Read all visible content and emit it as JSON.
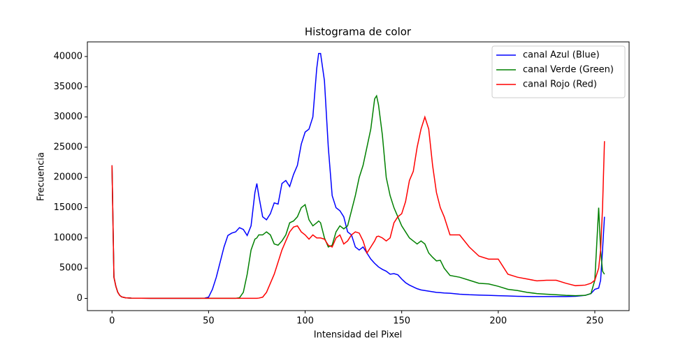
{
  "chart_data": {
    "type": "line",
    "title": "Histograma de color",
    "xlabel": "Intensidad del Pixel",
    "ylabel": "Frecuencia",
    "x": [
      0,
      1,
      2,
      3,
      4,
      5,
      7,
      10,
      15,
      20,
      30,
      40,
      45,
      48,
      50,
      52,
      54,
      56,
      58,
      60,
      62,
      64,
      66,
      68,
      70,
      72,
      74,
      75,
      76,
      78,
      80,
      82,
      84,
      86,
      88,
      90,
      92,
      94,
      96,
      98,
      100,
      102,
      104,
      106,
      107,
      108,
      110,
      112,
      114,
      116,
      118,
      120,
      122,
      124,
      126,
      128,
      130,
      132,
      134,
      136,
      137,
      138,
      140,
      142,
      144,
      146,
      148,
      150,
      152,
      154,
      156,
      158,
      160,
      162,
      164,
      166,
      168,
      170,
      172,
      175,
      180,
      185,
      190,
      195,
      200,
      205,
      210,
      215,
      220,
      225,
      230,
      235,
      240,
      245,
      248,
      250,
      252,
      253,
      254,
      255
    ],
    "series": [
      {
        "name": "canal Azul (Blue)",
        "color": "#0000ff",
        "values": [
          22000,
          3500,
          2000,
          1000,
          500,
          250,
          100,
          50,
          30,
          20,
          10,
          10,
          20,
          50,
          200,
          1500,
          3500,
          6000,
          8500,
          10400,
          10800,
          11000,
          11700,
          11400,
          10400,
          12000,
          17500,
          19000,
          17000,
          13500,
          13000,
          14000,
          15800,
          15600,
          19000,
          19500,
          18500,
          20500,
          22000,
          25500,
          27500,
          28000,
          30000,
          38000,
          40500,
          40500,
          36000,
          25000,
          17000,
          15000,
          14500,
          13500,
          11000,
          10500,
          8500,
          8000,
          8500,
          7500,
          6500,
          5800,
          5500,
          5200,
          4800,
          4500,
          4000,
          4100,
          3900,
          3200,
          2600,
          2200,
          1900,
          1600,
          1400,
          1300,
          1200,
          1100,
          1000,
          950,
          900,
          850,
          700,
          600,
          550,
          500,
          450,
          400,
          350,
          320,
          300,
          300,
          300,
          300,
          350,
          500,
          800,
          1500,
          1700,
          3000,
          8000,
          13500
        ]
      },
      {
        "name": "canal Verde (Green)",
        "color": "#008000",
        "values": [
          22000,
          3500,
          2000,
          1000,
          500,
          250,
          100,
          50,
          30,
          20,
          10,
          10,
          10,
          10,
          10,
          10,
          10,
          10,
          10,
          10,
          10,
          20,
          100,
          1000,
          4000,
          8000,
          9800,
          10000,
          10500,
          10500,
          11000,
          10500,
          9000,
          8800,
          9500,
          10500,
          12500,
          12800,
          13500,
          15000,
          15500,
          13000,
          12000,
          12500,
          12800,
          12500,
          10000,
          8500,
          8800,
          11000,
          12000,
          11500,
          12000,
          14500,
          17000,
          20000,
          22000,
          25000,
          28000,
          33000,
          33500,
          32000,
          27000,
          20000,
          17000,
          15000,
          13500,
          12000,
          11000,
          10000,
          9500,
          9000,
          9500,
          9000,
          7500,
          6800,
          6200,
          6300,
          5000,
          3800,
          3500,
          3000,
          2500,
          2400,
          2000,
          1500,
          1300,
          1000,
          800,
          700,
          600,
          500,
          450,
          500,
          800,
          3000,
          15000,
          8000,
          4500,
          4000
        ]
      },
      {
        "name": "canal Rojo (Red)",
        "color": "#ff0000",
        "values": [
          22000,
          3500,
          2000,
          1000,
          500,
          250,
          100,
          50,
          30,
          20,
          10,
          10,
          10,
          10,
          10,
          10,
          10,
          10,
          10,
          10,
          10,
          10,
          10,
          10,
          10,
          10,
          10,
          20,
          50,
          200,
          1000,
          2500,
          4000,
          6000,
          8000,
          9500,
          11000,
          11800,
          12000,
          11000,
          10500,
          9800,
          10500,
          10000,
          10000,
          10000,
          9800,
          8800,
          8500,
          10000,
          10500,
          9000,
          9500,
          10500,
          11000,
          10800,
          9500,
          7500,
          8500,
          9500,
          10200,
          10300,
          10000,
          9500,
          10000,
          12500,
          13500,
          14000,
          16000,
          19500,
          21000,
          25000,
          28000,
          30000,
          28000,
          22000,
          17500,
          15000,
          13500,
          10500,
          10500,
          8500,
          7000,
          6500,
          6500,
          4000,
          3500,
          3200,
          2900,
          3000,
          3000,
          2500,
          2100,
          2200,
          2500,
          3000,
          5000,
          8000,
          15000,
          26000
        ]
      }
    ],
    "xlim": [
      -12.75,
      267.75
    ],
    "ylim": [
      -2020,
      42420
    ],
    "xticks": [
      0,
      50,
      100,
      150,
      200,
      250
    ],
    "yticks": [
      0,
      5000,
      10000,
      15000,
      20000,
      25000,
      30000,
      35000,
      40000
    ],
    "legend": "upper right"
  }
}
